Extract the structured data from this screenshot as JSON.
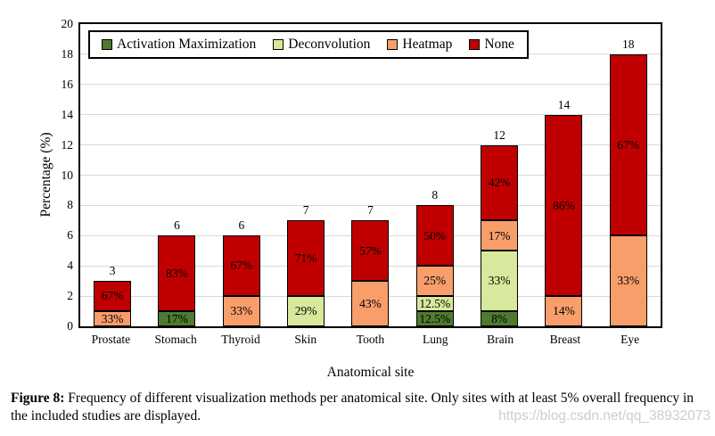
{
  "caption": {
    "label": "Figure 8:",
    "text": " Frequency of different visualization methods per anatomical site. Only sites with at least 5% overall frequency in the included studies are displayed."
  },
  "watermark": "https://blog.csdn.net/qq_38932073",
  "chart_data": {
    "type": "bar",
    "stacked": true,
    "title": "",
    "xlabel": "Anatomical site",
    "ylabel": "Percentage (%)",
    "ylim": [
      0,
      20
    ],
    "yticks": [
      0,
      2,
      4,
      6,
      8,
      10,
      12,
      14,
      16,
      18,
      20
    ],
    "grid": true,
    "legend_position": "top-left-inside",
    "legend_order": [
      "Activation Maximization",
      "Deconvolution",
      "Heatmap",
      "None"
    ],
    "categories": [
      "Prostate",
      "Stomach",
      "Thyroid",
      "Skin",
      "Tooth",
      "Lung",
      "Brain",
      "Breast",
      "Eye"
    ],
    "totals": [
      3,
      6,
      6,
      7,
      7,
      8,
      12,
      14,
      18
    ],
    "series": [
      {
        "name": "Activation Maximization",
        "color": "#4e7b2f",
        "values": [
          0,
          1,
          0,
          0,
          0,
          1,
          1,
          0,
          0
        ],
        "labels": [
          "",
          "17%",
          "",
          "",
          "",
          "12.5%",
          "8%",
          "",
          ""
        ]
      },
      {
        "name": "Deconvolution",
        "color": "#d8e89c",
        "values": [
          0,
          0,
          0,
          2,
          0,
          1,
          4,
          0,
          0
        ],
        "labels": [
          "",
          "",
          "",
          "29%",
          "",
          "12.5%",
          "33%",
          "",
          ""
        ]
      },
      {
        "name": "Heatmap",
        "color": "#f89e6b",
        "values": [
          1,
          0,
          2,
          0,
          3,
          2,
          2,
          2,
          6
        ],
        "labels": [
          "33%",
          "",
          "33%",
          "",
          "43%",
          "25%",
          "17%",
          "14%",
          "33%"
        ]
      },
      {
        "name": "None",
        "color": "#c00000",
        "values": [
          2,
          5,
          4,
          5,
          4,
          4,
          5,
          12,
          12
        ],
        "labels": [
          "67%",
          "83%",
          "67%",
          "71%",
          "57%",
          "50%",
          "42%",
          "86%",
          "67%"
        ]
      }
    ]
  }
}
